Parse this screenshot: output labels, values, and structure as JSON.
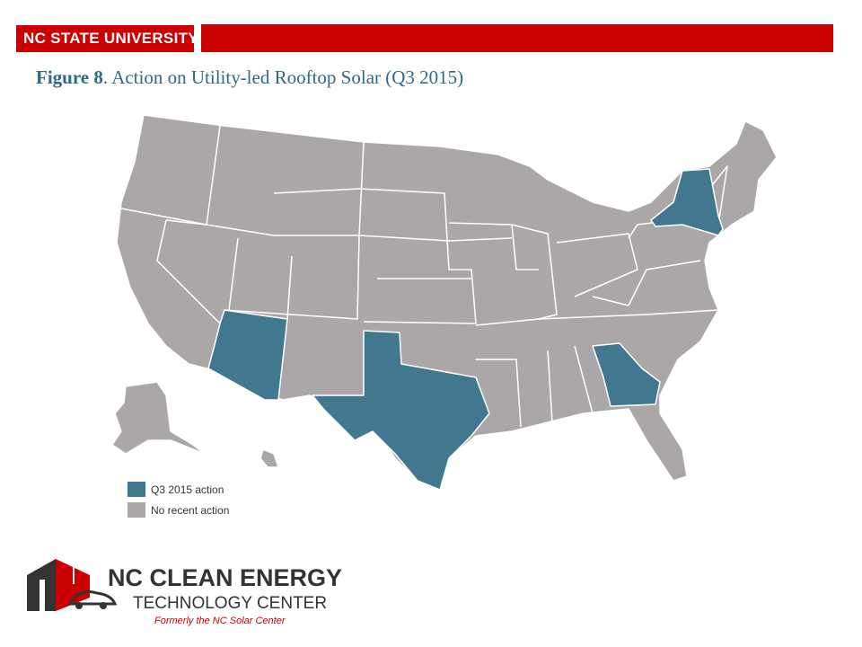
{
  "header": {
    "title": "NC STATE UNIVERSITY"
  },
  "figure": {
    "label": "Figure 8",
    "title": ". Action on Utility-led Rooftop Solar (Q3 2015)"
  },
  "legend": [
    {
      "label": "Q3 2015 action",
      "color": "#41788f"
    },
    {
      "label": "No recent action",
      "color": "#aba7a7"
    }
  ],
  "logo": {
    "name": "NC CLEAN ENERGY",
    "subtitle": "TECHNOLOGY CENTER",
    "tagline": "Formerly the NC Solar Center"
  }
}
